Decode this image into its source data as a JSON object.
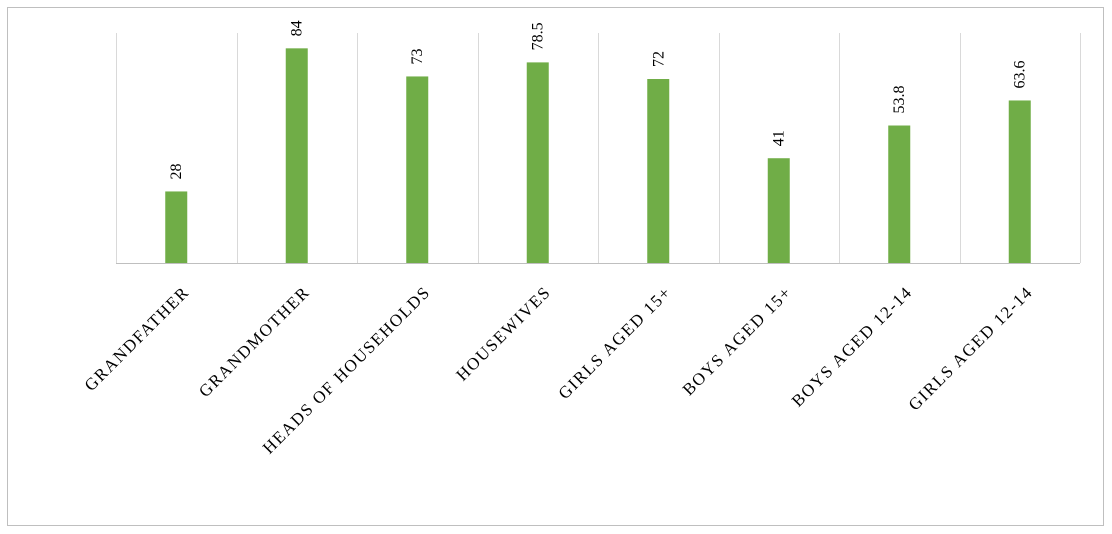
{
  "chart_data": {
    "type": "bar",
    "title": "",
    "xlabel": "",
    "ylabel": "",
    "categories": [
      "GRANDFATHER",
      "GRANDMOTHER",
      "HEADS OF HOUSEHOLDS",
      "HOUSEWIVES",
      "GIRLS AGED 15+",
      "BOYS AGED 15+",
      "BOYS AGED 12-14",
      "GIRLS AGED 12-14"
    ],
    "values": [
      28,
      84,
      73,
      78.5,
      72,
      41,
      53.8,
      63.6
    ],
    "value_labels": [
      "28",
      "84",
      "73",
      "78.5",
      "72",
      "41",
      "53.8",
      "63.6"
    ],
    "ylim": [
      0,
      90
    ],
    "grid": "vertical category separators",
    "legend": "none",
    "bar_color": "#70ad47",
    "axis_color": "#bfbfbf"
  }
}
